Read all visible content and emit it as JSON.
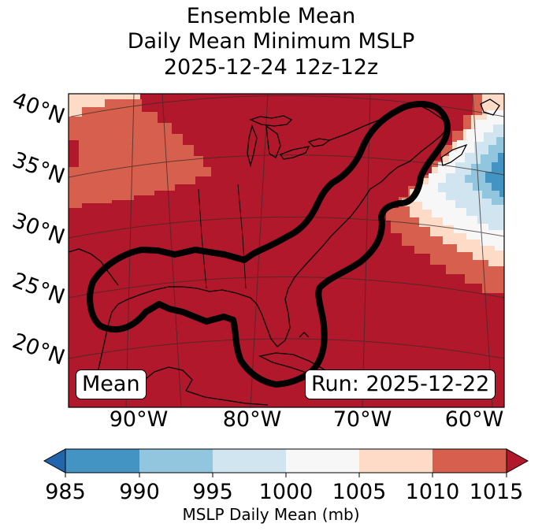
{
  "title": {
    "line1": "Ensemble Mean",
    "line2": "Daily Mean Minimum MSLP",
    "line3": "2025-12-24 12z-12z"
  },
  "map": {
    "lat_labels": [
      "40°N",
      "35°N",
      "30°N",
      "25°N",
      "20°N"
    ],
    "lon_labels": [
      "90°W",
      "80°W",
      "70°W",
      "60°W"
    ],
    "mean_box": "Mean",
    "run_box": "Run: 2025-12-22",
    "contour_color": "#000000"
  },
  "colorbar": {
    "label": "MSLP Daily Mean (mb)",
    "ticks": [
      "985",
      "990",
      "995",
      "1000",
      "1005",
      "1010",
      "1015"
    ],
    "colors": {
      "below": "#2166ac",
      "985-990": "#4393c3",
      "990-995": "#92c5de",
      "995-1000": "#d1e5f0",
      "1000-1005": "#f7f7f7",
      "1005-1010": "#fddbc7",
      "1010-1015": "#d6604d",
      "above": "#b2182b"
    }
  }
}
